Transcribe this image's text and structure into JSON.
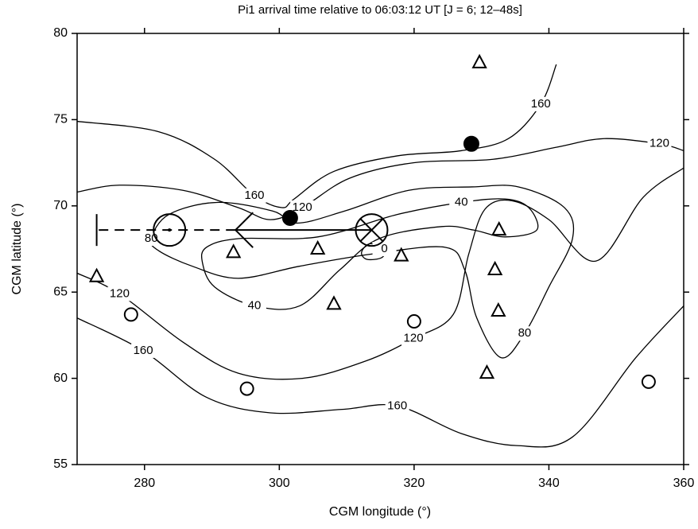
{
  "chart_data": {
    "type": "contour",
    "title": "Pi1 arrival time relative to 06:03:12 UT [J = 6; 12–48s]",
    "x_label": "CGM longitude (°)",
    "y_label": "CGM latitude (°)",
    "xlim": [
      270,
      360
    ],
    "ylim": [
      55,
      80
    ],
    "xticks": [
      280,
      300,
      320,
      340,
      360
    ],
    "yticks": [
      55,
      60,
      65,
      70,
      75,
      80
    ],
    "contours": [
      {
        "level": 160,
        "closed": false,
        "x": [
          270,
          282.1,
          290.4,
          296.3,
          300.4,
          302.2,
          308.1,
          317.5,
          327,
          334,
          338.8,
          341.1
        ],
        "y": [
          74.9,
          74.3,
          72.7,
          70.6,
          69.9,
          70.4,
          72.0,
          72.9,
          73.2,
          73.9,
          75.9,
          78.2
        ]
      },
      {
        "level": 120,
        "closed": false,
        "x": [
          270,
          276.3,
          285.7,
          293.9,
          298.7,
          303.4,
          310.4,
          319.9,
          331.7,
          341.1,
          348.2,
          356.4,
          360
        ],
        "y": [
          70.8,
          71.2,
          70.9,
          69.9,
          69.2,
          69.9,
          71.6,
          72.5,
          72.7,
          73.4,
          73.9,
          73.6,
          73.2
        ]
      },
      {
        "level": 120,
        "closed": false,
        "x": [
          270,
          276.3,
          285.7,
          293.9,
          303.4,
          312.8,
          319.9,
          325.8,
          328.1,
          330.5,
          334.5,
          340,
          347,
          354,
          360
        ],
        "y": [
          66.1,
          64.9,
          62.1,
          60.3,
          60.0,
          61.0,
          62.3,
          63.7,
          67.2,
          69.8,
          70.3,
          69.2,
          66.8,
          70.5,
          72.2
        ]
      },
      {
        "level": 160,
        "closed": false,
        "x": [
          270,
          279.8,
          289.2,
          298.7,
          309.3,
          317.5,
          327,
          335.2,
          343.5,
          352.9,
          360
        ],
        "y": [
          63.5,
          61.6,
          58.9,
          58.0,
          58.2,
          58.4,
          56.8,
          56.1,
          56.6,
          61.2,
          64.2
        ]
      },
      {
        "level": 80,
        "closed": true,
        "x": [
          281,
          283.6,
          290.7,
          299,
          302.6,
          309.7,
          319.2,
          328.6,
          335.5,
          342.3,
          343.5,
          340,
          336.4,
          332.9,
          329.3,
          327.5,
          324.6,
          313.6,
          303,
          293.9,
          287.1,
          282.1
        ],
        "y": [
          68.1,
          69.5,
          70.2,
          69.7,
          69.0,
          69.7,
          70.9,
          71.1,
          71.1,
          69.9,
          68.1,
          65.3,
          62.6,
          61.2,
          63.5,
          66.3,
          67.6,
          67.2,
          66.5,
          65.8,
          66.5,
          67.4
        ]
      },
      {
        "level": 40,
        "closed": true,
        "x": [
          288.6,
          289.2,
          293.9,
          305.7,
          317.5,
          327,
          333.5,
          337,
          338.2,
          333.5,
          328.8,
          324.1,
          314.8,
          309,
          303,
          296.3,
          290.4
        ],
        "y": [
          66.7,
          67.6,
          68.1,
          68.2,
          69.5,
          70.2,
          70.4,
          69.9,
          68.6,
          68.2,
          68.6,
          68.8,
          68.1,
          66.3,
          64.2,
          64.2,
          65.3
        ]
      },
      {
        "level": 0,
        "closed": true,
        "x": [
          312.2,
          313.4,
          315.6,
          315.2,
          313.0
        ],
        "y": [
          67.3,
          67.8,
          67.5,
          67.0,
          66.9
        ]
      }
    ],
    "stations": [
      {
        "marker": "triangle",
        "x": [
          329.7,
          332.6,
          332.0,
          332.5,
          330.8,
          308.1,
          305.7,
          318.1,
          293.2,
          272.9
        ],
        "y": [
          78.3,
          68.6,
          66.3,
          63.9,
          60.3,
          64.3,
          67.5,
          67.1,
          67.3,
          65.9
        ]
      },
      {
        "marker": "circle",
        "x": [
          278.0,
          295.2,
          320.0,
          354.8
        ],
        "y": [
          63.7,
          59.4,
          63.3,
          59.8
        ]
      },
      {
        "marker": "filled-circle",
        "x": [
          301.6,
          328.5
        ],
        "y": [
          69.3,
          73.6
        ]
      },
      {
        "marker": "large-circle",
        "x": [
          283.7
        ],
        "y": [
          68.6
        ]
      },
      {
        "marker": "crossed-circle",
        "x": [
          313.7
        ],
        "y": [
          68.6
        ]
      }
    ],
    "vectors": [
      {
        "style": "arrow",
        "x": [
          313.7,
          293.5
        ],
        "y": [
          68.6,
          68.6
        ]
      },
      {
        "style": "dashed-bar",
        "x": [
          293.5,
          272.9
        ],
        "y": [
          68.6,
          68.6
        ]
      }
    ]
  }
}
